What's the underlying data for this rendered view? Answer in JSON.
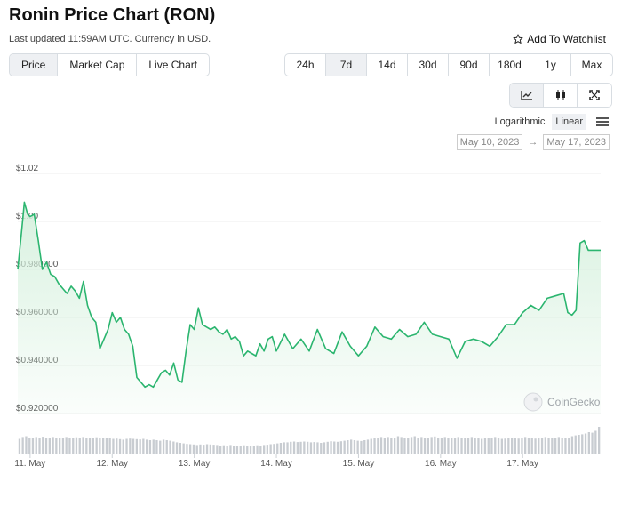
{
  "page": {
    "title": "Ronin Price Chart (RON)",
    "subtitle": "Last updated 11:59AM UTC. Currency in USD.",
    "watchlist_label": "Add To Watchlist"
  },
  "type_tabs": [
    {
      "label": "Price",
      "active": true
    },
    {
      "label": "Market Cap",
      "active": false
    },
    {
      "label": "Live Chart",
      "active": false
    }
  ],
  "range_tabs": [
    {
      "label": "24h",
      "active": false
    },
    {
      "label": "7d",
      "active": true
    },
    {
      "label": "14d",
      "active": false
    },
    {
      "label": "30d",
      "active": false
    },
    {
      "label": "90d",
      "active": false
    },
    {
      "label": "180d",
      "active": false
    },
    {
      "label": "1y",
      "active": false
    },
    {
      "label": "Max",
      "active": false
    }
  ],
  "tools": [
    {
      "icon": "line-chart-icon",
      "active": true
    },
    {
      "icon": "candlestick-icon",
      "active": false
    },
    {
      "icon": "fullscreen-icon",
      "active": false
    }
  ],
  "scale": {
    "logarithmic_label": "Logarithmic",
    "linear_label": "Linear",
    "active": "linear"
  },
  "date_range": {
    "from": "May 10, 2023",
    "separator": "→",
    "to": "May 17, 2023"
  },
  "watermark": "CoinGecko",
  "colors": {
    "line": "#2bb56f",
    "area_top": "#d4f0dc",
    "volume": "#c8ccd1",
    "grid": "#eeeeee",
    "active_button": "#eef0f3"
  },
  "chart_data": {
    "type": "area",
    "title": "Ronin Price Chart (RON)",
    "ylim": [
      0.92,
      1.02
    ],
    "y_ticks": [
      0.92,
      0.94,
      0.96,
      0.98,
      1.0,
      1.02
    ],
    "y_tick_labels": [
      "$0.920000",
      "$0.940000",
      "$0.960000",
      "$0.980000",
      "$1.00",
      "$1.02"
    ],
    "x_ticks": [
      1,
      2,
      3,
      4,
      5,
      6,
      7
    ],
    "x_tick_labels": [
      "11. May",
      "12. May",
      "13. May",
      "14. May",
      "15. May",
      "16. May",
      "17. May"
    ],
    "xlim": [
      0.85,
      7.95
    ],
    "grid": true,
    "series": [
      {
        "x": [
          0.85,
          0.9,
          0.93,
          0.97,
          1.0,
          1.05,
          1.1,
          1.15,
          1.2,
          1.25,
          1.3,
          1.35,
          1.4,
          1.45,
          1.5,
          1.55,
          1.6,
          1.65,
          1.7,
          1.75,
          1.8,
          1.85,
          1.9,
          1.95,
          2.0,
          2.05,
          2.1,
          2.15,
          2.2,
          2.25,
          2.3,
          2.35,
          2.4,
          2.45,
          2.5,
          2.55,
          2.6,
          2.65,
          2.7,
          2.75,
          2.8,
          2.85,
          2.9,
          2.95,
          3.0,
          3.05,
          3.1,
          3.15,
          3.2,
          3.25,
          3.3,
          3.35,
          3.4,
          3.45,
          3.5,
          3.55,
          3.6,
          3.65,
          3.7,
          3.75,
          3.8,
          3.85,
          3.9,
          3.95,
          4.0,
          4.1,
          4.2,
          4.3,
          4.4,
          4.5,
          4.6,
          4.7,
          4.8,
          4.9,
          5.0,
          5.1,
          5.2,
          5.3,
          5.4,
          5.5,
          5.6,
          5.7,
          5.8,
          5.9,
          6.0,
          6.1,
          6.2,
          6.3,
          6.4,
          6.5,
          6.6,
          6.7,
          6.8,
          6.9,
          7.0,
          7.1,
          7.2,
          7.3,
          7.4,
          7.5,
          7.55,
          7.6,
          7.65,
          7.7,
          7.75,
          7.8,
          7.85,
          7.9,
          7.95
        ],
        "y": [
          0.98,
          0.997,
          1.008,
          1.003,
          1.002,
          1.003,
          0.992,
          0.98,
          0.983,
          0.978,
          0.977,
          0.974,
          0.972,
          0.97,
          0.973,
          0.971,
          0.968,
          0.975,
          0.965,
          0.96,
          0.958,
          0.947,
          0.951,
          0.955,
          0.962,
          0.958,
          0.96,
          0.955,
          0.953,
          0.948,
          0.935,
          0.933,
          0.931,
          0.932,
          0.931,
          0.934,
          0.937,
          0.938,
          0.936,
          0.941,
          0.934,
          0.933,
          0.946,
          0.957,
          0.955,
          0.964,
          0.957,
          0.956,
          0.955,
          0.956,
          0.954,
          0.953,
          0.955,
          0.951,
          0.952,
          0.95,
          0.944,
          0.946,
          0.945,
          0.944,
          0.949,
          0.946,
          0.951,
          0.952,
          0.946,
          0.953,
          0.947,
          0.951,
          0.946,
          0.955,
          0.947,
          0.945,
          0.954,
          0.948,
          0.944,
          0.948,
          0.956,
          0.952,
          0.951,
          0.955,
          0.952,
          0.953,
          0.958,
          0.953,
          0.952,
          0.951,
          0.943,
          0.95,
          0.951,
          0.95,
          0.948,
          0.952,
          0.957,
          0.957,
          0.962,
          0.965,
          0.963,
          0.968,
          0.969,
          0.97,
          0.962,
          0.961,
          0.963,
          0.991,
          0.992,
          0.988,
          0.988,
          0.988,
          0.988
        ]
      }
    ],
    "volume": [
      0.55,
      0.62,
      0.65,
      0.6,
      0.58,
      0.62,
      0.6,
      0.63,
      0.58,
      0.6,
      0.62,
      0.6,
      0.58,
      0.6,
      0.62,
      0.6,
      0.59,
      0.61,
      0.6,
      0.62,
      0.6,
      0.58,
      0.6,
      0.61,
      0.58,
      0.6,
      0.59,
      0.57,
      0.55,
      0.56,
      0.54,
      0.52,
      0.55,
      0.56,
      0.55,
      0.54,
      0.53,
      0.55,
      0.52,
      0.5,
      0.52,
      0.5,
      0.48,
      0.52,
      0.5,
      0.48,
      0.45,
      0.42,
      0.4,
      0.38,
      0.36,
      0.35,
      0.34,
      0.32,
      0.34,
      0.33,
      0.35,
      0.34,
      0.33,
      0.32,
      0.3,
      0.31,
      0.3,
      0.32,
      0.3,
      0.29,
      0.3,
      0.31,
      0.29,
      0.3,
      0.3,
      0.31,
      0.3,
      0.32,
      0.33,
      0.35,
      0.36,
      0.38,
      0.4,
      0.42,
      0.42,
      0.44,
      0.45,
      0.43,
      0.44,
      0.45,
      0.44,
      0.42,
      0.43,
      0.42,
      0.4,
      0.42,
      0.44,
      0.46,
      0.45,
      0.44,
      0.46,
      0.48,
      0.5,
      0.52,
      0.5,
      0.48,
      0.47,
      0.5,
      0.52,
      0.55,
      0.58,
      0.6,
      0.62,
      0.6,
      0.62,
      0.58,
      0.6,
      0.65,
      0.62,
      0.6,
      0.58,
      0.62,
      0.65,
      0.6,
      0.62,
      0.6,
      0.58,
      0.62,
      0.64,
      0.6,
      0.58,
      0.62,
      0.6,
      0.58,
      0.6,
      0.62,
      0.6,
      0.58,
      0.6,
      0.62,
      0.6,
      0.58,
      0.55,
      0.6,
      0.58,
      0.6,
      0.62,
      0.58,
      0.55,
      0.56,
      0.58,
      0.6,
      0.58,
      0.56,
      0.6,
      0.62,
      0.6,
      0.58,
      0.56,
      0.58,
      0.6,
      0.62,
      0.6,
      0.58,
      0.6,
      0.62,
      0.6,
      0.58,
      0.6,
      0.65,
      0.68,
      0.7,
      0.72,
      0.75,
      0.8,
      0.78,
      0.85,
      1.0
    ]
  }
}
